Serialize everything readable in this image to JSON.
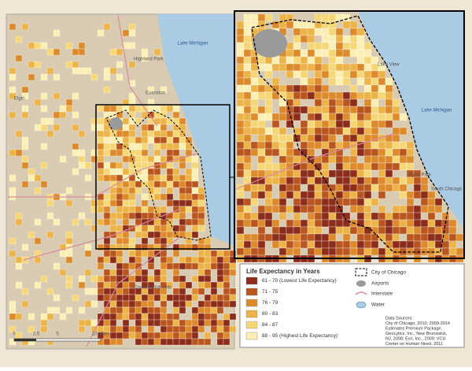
{
  "map": {
    "left_labels": [
      "Lake Michigan",
      "Highland Park",
      "Evanston",
      "Elgin",
      "Country Club Hills"
    ],
    "inset_labels": [
      "Lake Michigan",
      "Lake View",
      "Hyde Park",
      "South Chicago"
    ],
    "scale": [
      "0",
      "2.5",
      "5",
      "10 Miles"
    ]
  },
  "legend": {
    "title": "Life Expectancy in Years",
    "items": [
      {
        "label": "61 - 70 (Lowest Life Expectancy)",
        "color": "#8c2d1c"
      },
      {
        "label": "71 - 75",
        "color": "#b9561f"
      },
      {
        "label": "76 - 79",
        "color": "#dc8a2c"
      },
      {
        "label": "80 - 83",
        "color": "#ecb349"
      },
      {
        "label": "84 - 87",
        "color": "#f6d778"
      },
      {
        "label": "88 - 95 (Highest Life Expectancy)",
        "color": "#fbefb6"
      }
    ],
    "features": [
      "City of Chicago",
      "Airports",
      "Interstate",
      "Water"
    ],
    "sources": [
      "Data Sources:",
      "City of Chicago, 2010; 2009-2014",
      "Estimates Premium Package,",
      "GeoLytics, Inc., New Brunswick,",
      "NJ, 2008; Esri, Inc., 2009; VCU",
      "Center on Human Need, 2011"
    ]
  }
}
